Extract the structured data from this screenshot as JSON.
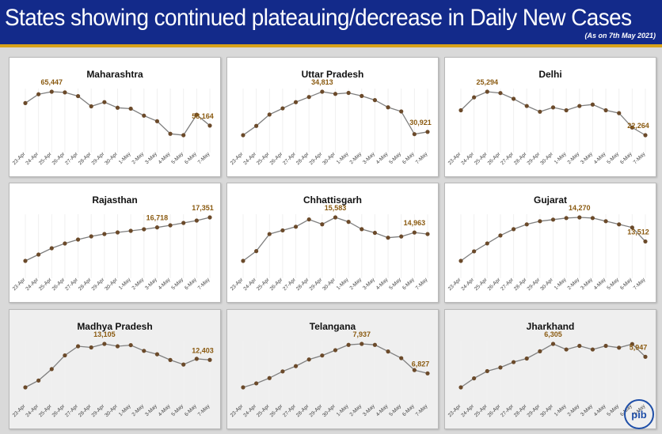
{
  "header": {
    "title": "States showing continued plateauing/decrease in Daily New Cases",
    "as_on": "(As on 7th May 2021)"
  },
  "logo": {
    "text": "pib",
    "icon": "pib-logo-icon"
  },
  "colors": {
    "header_bg": "#132a8a",
    "header_stripe": "#d8a21a",
    "line": "#7f7f7f",
    "marker": "#6b4a2a",
    "data_label": "#8a5a10"
  },
  "chart_data": [
    {
      "type": "line",
      "title": "Maharashtra",
      "categories": [
        "23-Apr",
        "24-Apr",
        "25-Apr",
        "26-Apr",
        "27-Apr",
        "28-Apr",
        "29-Apr",
        "30-Apr",
        "1-May",
        "2-May",
        "3-May",
        "4-May",
        "5-May",
        "6-May",
        "7-May"
      ],
      "series": [
        {
          "values": [
            63000,
            64900,
            65447,
            65300,
            64500,
            62300,
            63200,
            62000,
            61800,
            60300,
            59100,
            56400,
            56100,
            60500,
            58164
          ]
        }
      ],
      "data_labels": [
        {
          "index": 2,
          "text": "65,447"
        },
        {
          "index": 14,
          "text": "58,164"
        }
      ]
    },
    {
      "type": "line",
      "title": "Uttar Pradesh",
      "categories": [
        "23-Apr",
        "24-Apr",
        "25-Apr",
        "26-Apr",
        "27-Apr",
        "28-Apr",
        "29-Apr",
        "30-Apr",
        "1-May",
        "2-May",
        "3-May",
        "4-May",
        "5-May",
        "6-May",
        "7-May"
      ],
      "series": [
        {
          "values": [
            30600,
            31500,
            32600,
            33200,
            33800,
            34300,
            34813,
            34600,
            34700,
            34400,
            34000,
            33300,
            32900,
            30700,
            30921
          ]
        }
      ],
      "data_labels": [
        {
          "index": 6,
          "text": "34,813"
        },
        {
          "index": 14,
          "text": "30,921"
        }
      ]
    },
    {
      "type": "line",
      "title": "Delhi",
      "categories": [
        "23-Apr",
        "24-Apr",
        "25-Apr",
        "26-Apr",
        "27-Apr",
        "28-Apr",
        "29-Apr",
        "30-Apr",
        "1-May",
        "2-May",
        "3-May",
        "4-May",
        "5-May",
        "6-May",
        "7-May"
      ],
      "series": [
        {
          "values": [
            24000,
            24900,
            25294,
            25200,
            24800,
            24300,
            23900,
            24200,
            24000,
            24300,
            24400,
            24000,
            23800,
            22800,
            22264
          ]
        }
      ],
      "data_labels": [
        {
          "index": 2,
          "text": "25,294"
        },
        {
          "index": 14,
          "text": "22,264"
        }
      ]
    },
    {
      "type": "line",
      "title": "Rajasthan",
      "categories": [
        "23-Apr",
        "24-Apr",
        "25-Apr",
        "26-Apr",
        "27-Apr",
        "28-Apr",
        "29-Apr",
        "30-Apr",
        "1-May",
        "2-May",
        "3-May",
        "4-May",
        "5-May",
        "6-May",
        "7-May"
      ],
      "series": [
        {
          "values": [
            14600,
            15000,
            15400,
            15700,
            15950,
            16150,
            16300,
            16400,
            16500,
            16600,
            16718,
            16850,
            17000,
            17150,
            17351
          ]
        }
      ],
      "data_labels": [
        {
          "index": 10,
          "text": "16,718"
        },
        {
          "index": 14,
          "text": "17,351"
        }
      ]
    },
    {
      "type": "line",
      "title": "Chhattisgarh",
      "categories": [
        "23-Apr",
        "24-Apr",
        "25-Apr",
        "26-Apr",
        "27-Apr",
        "28-Apr",
        "29-Apr",
        "30-Apr",
        "1-May",
        "2-May",
        "3-May",
        "4-May",
        "5-May",
        "6-May",
        "7-May"
      ],
      "series": [
        {
          "values": [
            13800,
            14200,
            14900,
            15050,
            15200,
            15500,
            15300,
            15583,
            15400,
            15100,
            14950,
            14750,
            14800,
            14963,
            14900
          ]
        }
      ],
      "data_labels": [
        {
          "index": 7,
          "text": "15,583"
        },
        {
          "index": 13,
          "text": "14,963"
        }
      ]
    },
    {
      "type": "line",
      "title": "Gujarat",
      "categories": [
        "23-Apr",
        "24-Apr",
        "25-Apr",
        "26-Apr",
        "27-Apr",
        "28-Apr",
        "29-Apr",
        "30-Apr",
        "1-May",
        "2-May",
        "3-May",
        "4-May",
        "5-May",
        "6-May",
        "7-May"
      ],
      "series": [
        {
          "values": [
            12900,
            13200,
            13450,
            13700,
            13900,
            14050,
            14150,
            14200,
            14250,
            14270,
            14250,
            14150,
            14050,
            13950,
            13512
          ]
        }
      ],
      "data_labels": [
        {
          "index": 9,
          "text": "14,270"
        },
        {
          "index": 14,
          "text": "13,512"
        }
      ]
    },
    {
      "type": "line",
      "title": "Madhya Pradesh",
      "categories": [
        "23-Apr",
        "24-Apr",
        "25-Apr",
        "26-Apr",
        "27-Apr",
        "28-Apr",
        "29-Apr",
        "30-Apr",
        "1-May",
        "2-May",
        "3-May",
        "4-May",
        "5-May",
        "6-May",
        "7-May"
      ],
      "series": [
        {
          "values": [
            11200,
            11500,
            12000,
            12600,
            13000,
            12950,
            13105,
            13000,
            13050,
            12800,
            12650,
            12400,
            12200,
            12450,
            12403
          ]
        }
      ],
      "data_labels": [
        {
          "index": 6,
          "text": "13,105"
        },
        {
          "index": 14,
          "text": "12,403"
        }
      ]
    },
    {
      "type": "line",
      "title": "Telangana",
      "categories": [
        "23-Apr",
        "24-Apr",
        "25-Apr",
        "26-Apr",
        "27-Apr",
        "28-Apr",
        "29-Apr",
        "30-Apr",
        "1-May",
        "2-May",
        "3-May",
        "4-May",
        "5-May",
        "6-May",
        "7-May"
      ],
      "series": [
        {
          "values": [
            6300,
            6450,
            6650,
            6900,
            7100,
            7350,
            7500,
            7700,
            7900,
            7937,
            7900,
            7650,
            7400,
            6950,
            6827
          ]
        }
      ],
      "data_labels": [
        {
          "index": 9,
          "text": "7,937"
        },
        {
          "index": 14,
          "text": "6,827"
        }
      ]
    },
    {
      "type": "line",
      "title": "Jharkhand",
      "categories": [
        "23-Apr",
        "24-Apr",
        "25-Apr",
        "26-Apr",
        "27-Apr",
        "28-Apr",
        "29-Apr",
        "30-Apr",
        "1-May",
        "2-May",
        "3-May",
        "4-May",
        "5-May",
        "6-May",
        "7-May"
      ],
      "series": [
        {
          "values": [
            5100,
            5350,
            5550,
            5650,
            5800,
            5900,
            6100,
            6305,
            6150,
            6250,
            6150,
            6250,
            6200,
            6300,
            5947
          ]
        }
      ],
      "data_labels": [
        {
          "index": 7,
          "text": "6,305"
        },
        {
          "index": 14,
          "text": "5,947"
        }
      ]
    }
  ]
}
